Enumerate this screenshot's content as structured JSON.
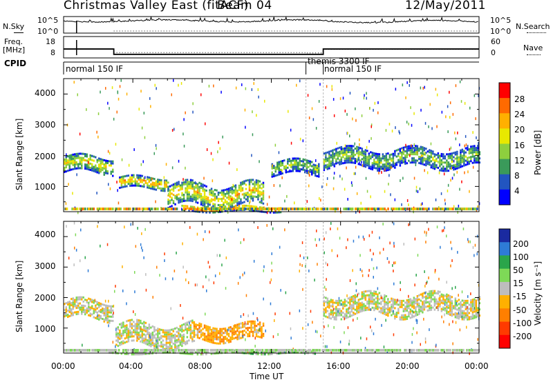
{
  "header": {
    "title": "Christmas Valley East (fitACF)",
    "beam": "Beam 04",
    "date": "12/May/2011"
  },
  "top_panels": {
    "nsky_label": "N.Sky",
    "nsky_ticks": [
      "10^5",
      "10^0"
    ],
    "nsky_right_ticks": [
      "10^5",
      "10^0"
    ],
    "nsearch_label": "N.Search",
    "freq_label_1": "Freq.",
    "freq_label_2": "[MHz]",
    "freq_ticks": [
      "18",
      "8"
    ],
    "nave_ticks": [
      "60",
      "0"
    ],
    "nave_label": "Nave",
    "cpid_label": "CPID",
    "cpid_segments": [
      {
        "label": "normal 150 IF",
        "start_hour": 0
      },
      {
        "label": "themis 3300 IF",
        "start_hour": 14
      },
      {
        "label": "normal 150 IF",
        "start_hour": 15
      }
    ]
  },
  "axes": {
    "ylabel": "Slant Range [km]",
    "y_ticks": [
      "4000",
      "3000",
      "2000",
      "1000"
    ],
    "x_ticks": [
      "00:00",
      "04:00",
      "08:00",
      "12:00",
      "16:00",
      "20:00",
      "00:00"
    ],
    "xlabel": "Time UT"
  },
  "colorbars": {
    "power": {
      "label": "Power [dB]",
      "ticks": [
        "28",
        "24",
        "20",
        "16",
        "12",
        "8",
        "4"
      ],
      "colors": [
        "#ff0000",
        "#ff6a00",
        "#ffb000",
        "#e8e800",
        "#8ecf3e",
        "#3a9a5a",
        "#2255c0",
        "#0000ff"
      ]
    },
    "velocity": {
      "label": "Velocity [m s⁻¹]",
      "ticks": [
        "200",
        "100",
        "50",
        "15",
        "-15",
        "-50",
        "-100",
        "-200"
      ],
      "colors": [
        "#1a2aa0",
        "#2e7bd6",
        "#2aa54a",
        "#7ed957",
        "#bdbdbd",
        "#ffb000",
        "#ff7f00",
        "#ff3a00",
        "#ff0000"
      ]
    }
  },
  "chart_data": [
    {
      "type": "heatmap",
      "title": "Power",
      "xlabel": "Time UT",
      "ylabel": "Slant Range [km]",
      "xlim": [
        0,
        24
      ],
      "ylim": [
        180,
        4500
      ],
      "colorbar_label": "Power [dB]",
      "colorbar_range": [
        0,
        30
      ],
      "features": [
        {
          "t_start": 0.0,
          "t_end": 2.8,
          "range_center": 1750,
          "range_width": 500,
          "power": 18
        },
        {
          "t_start": 3.2,
          "t_end": 6.0,
          "range_center": 1150,
          "range_width": 350,
          "power": 22
        },
        {
          "t_start": 6.0,
          "t_end": 11.5,
          "range_center": 750,
          "range_width": 700,
          "power": 20
        },
        {
          "t_start": 6.8,
          "t_end": 12.5,
          "range_center": 320,
          "range_width": 180,
          "power": 26
        },
        {
          "t_start": 12.0,
          "t_end": 14.7,
          "range_center": 1650,
          "range_width": 450,
          "power": 14
        },
        {
          "t_start": 15.0,
          "t_end": 24.0,
          "range_center": 1950,
          "range_width": 550,
          "power": 14
        }
      ]
    },
    {
      "type": "heatmap",
      "title": "Velocity",
      "xlabel": "Time UT",
      "ylabel": "Slant Range [km]",
      "xlim": [
        0,
        24
      ],
      "ylim": [
        180,
        4500
      ],
      "colorbar_label": "Velocity [m s⁻¹]",
      "colorbar_range": [
        -200,
        200
      ],
      "features": [
        {
          "t_start": 0.0,
          "t_end": 2.8,
          "range_center": 1650,
          "range_width": 600,
          "velocity": 0
        },
        {
          "t_start": 3.0,
          "t_end": 7.5,
          "range_center": 800,
          "range_width": 700,
          "velocity": 0
        },
        {
          "t_start": 7.5,
          "t_end": 11.5,
          "range_center": 900,
          "range_width": 500,
          "velocity": -40
        },
        {
          "t_start": 15.0,
          "t_end": 24.0,
          "range_center": 1800,
          "range_width": 650,
          "velocity": 0
        },
        {
          "t_start": 2.5,
          "t_end": 14.5,
          "range_center": 260,
          "range_width": 120,
          "velocity": 25
        }
      ]
    }
  ]
}
